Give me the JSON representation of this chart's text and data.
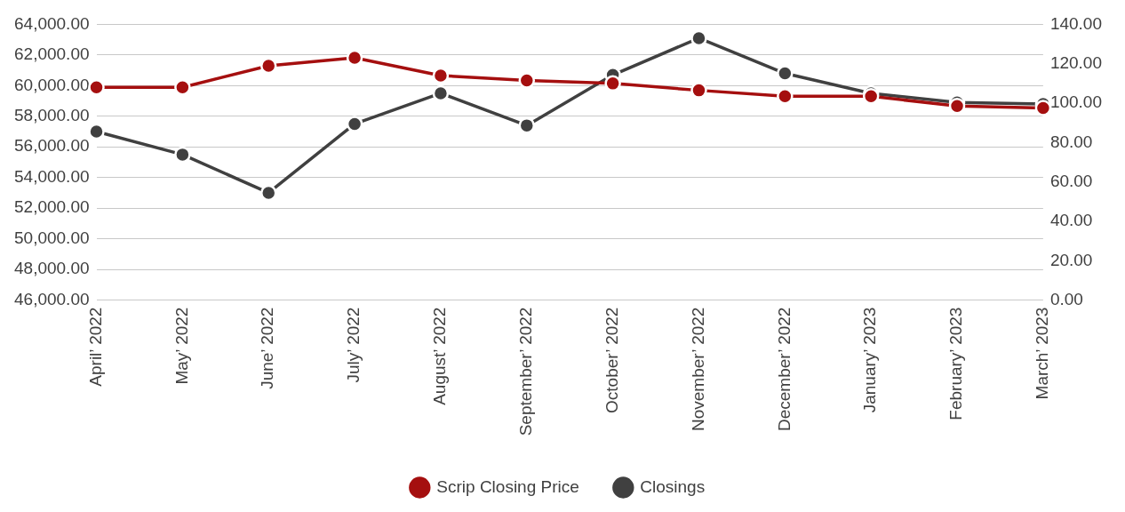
{
  "chart_data": {
    "type": "line",
    "categories": [
      "April’ 2022",
      "May’ 2022",
      "June’ 2022",
      "July’ 2022",
      "August’ 2022",
      "September’ 2022",
      "October’ 2022",
      "November’ 2022",
      "December’ 2022",
      "January’ 2023",
      "February’ 2023",
      "March’ 2023"
    ],
    "series": [
      {
        "name": "Closings",
        "color": "#404040",
        "values": [
          57000,
          55500,
          53000,
          57500,
          59500,
          57400,
          60700,
          63100,
          60800,
          59500,
          58900,
          58800
        ]
      },
      {
        "name": "Scrip Closing Price",
        "color": "#a50f0f",
        "axis": "y2",
        "values": [
          108,
          108,
          119,
          123,
          114,
          111.5,
          110,
          106.5,
          103.5,
          103.5,
          98.5,
          97.5
        ]
      }
    ],
    "ylim": [
      46000,
      64000
    ],
    "yticks": [
      {
        "value": 46000,
        "label": "46,000.00"
      },
      {
        "value": 48000,
        "label": "48,000.00"
      },
      {
        "value": 50000,
        "label": "50,000.00"
      },
      {
        "value": 52000,
        "label": "52,000.00"
      },
      {
        "value": 54000,
        "label": "54,000.00"
      },
      {
        "value": 56000,
        "label": "56,000.00"
      },
      {
        "value": 58000,
        "label": "58,000.00"
      },
      {
        "value": 60000,
        "label": "60,000.00"
      },
      {
        "value": 62000,
        "label": "62,000.00"
      },
      {
        "value": 64000,
        "label": "64,000.00"
      }
    ],
    "y2lim": [
      0,
      140
    ],
    "y2ticks": [
      {
        "value": 0,
        "label": "0.00"
      },
      {
        "value": 20,
        "label": "20.00"
      },
      {
        "value": 40,
        "label": "40.00"
      },
      {
        "value": 60,
        "label": "60.00"
      },
      {
        "value": 80,
        "label": "80.00"
      },
      {
        "value": 100,
        "label": "100.00"
      },
      {
        "value": 120,
        "label": "120.00"
      },
      {
        "value": 140,
        "label": "140.00"
      }
    ],
    "grid": "y",
    "legend": "bottom",
    "marker": "circle",
    "line_style": "solid"
  }
}
